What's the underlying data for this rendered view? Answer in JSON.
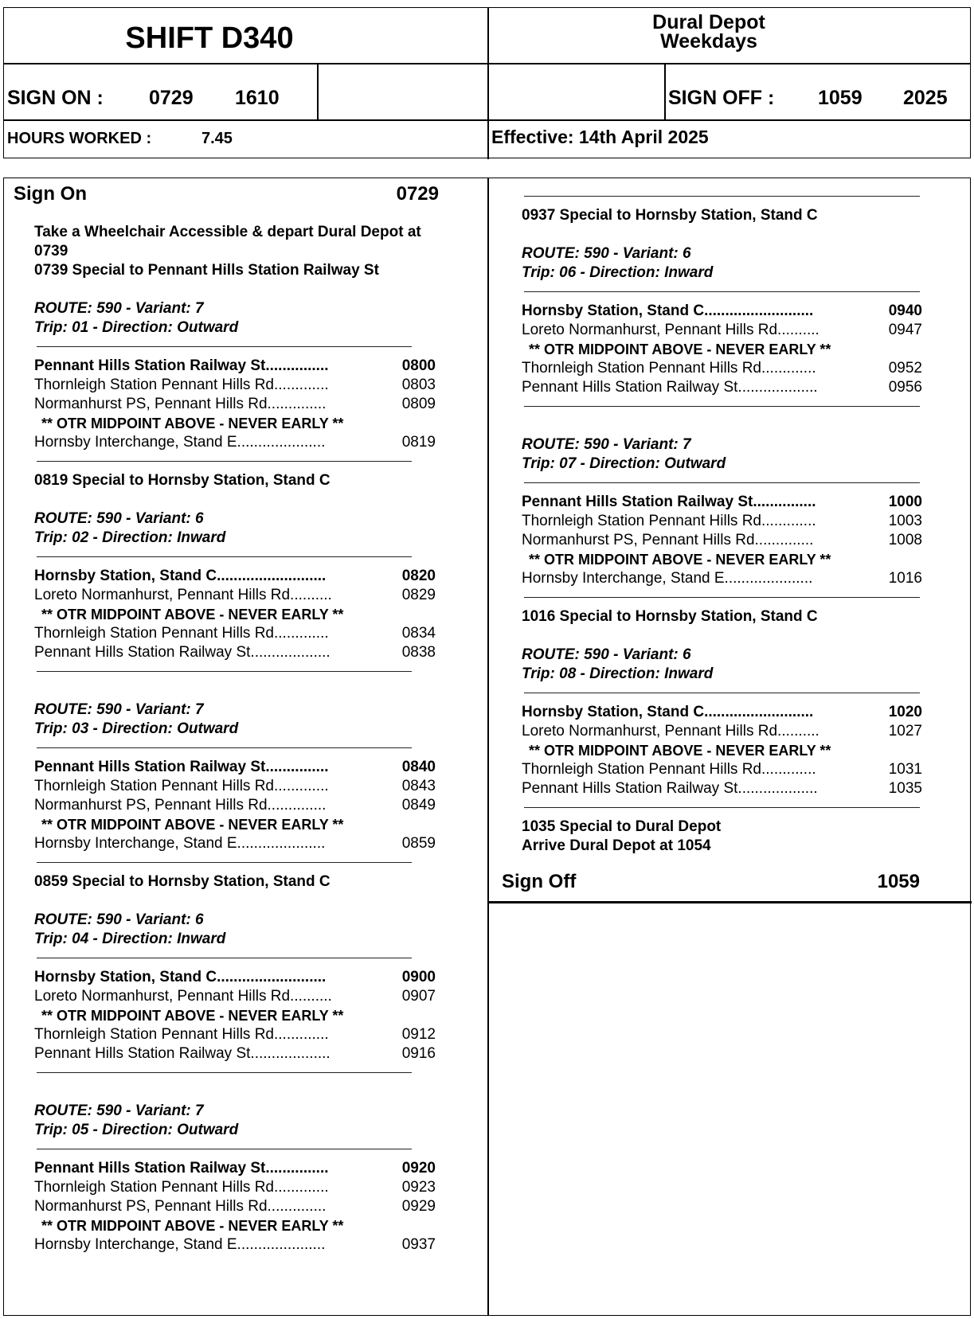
{
  "header": {
    "shift_title": "SHIFT D340",
    "depot": "Dural Depot",
    "day_type": "Weekdays",
    "sign_on_label": "SIGN ON :",
    "sign_on_time_1": "0729",
    "sign_on_time_2": "1610",
    "sign_off_label": "SIGN OFF :",
    "sign_off_time_1": "1059",
    "sign_off_time_2": "2025",
    "hours_worked_label": "HOURS WORKED :",
    "hours_worked_value": "7.45",
    "effective": "Effective: 14th April 2025"
  },
  "columns": {
    "left": [
      {
        "type": "big",
        "label": "Sign On",
        "time": "0729"
      },
      {
        "type": "gap"
      },
      {
        "type": "txt",
        "text": "Take a Wheelchair Accessible & depart Dural Depot at"
      },
      {
        "type": "txt",
        "text": "0739"
      },
      {
        "type": "txt",
        "text": "0739 Special to Pennant Hills Station Railway St"
      },
      {
        "type": "blank"
      },
      {
        "type": "route",
        "text": "ROUTE: 590 - Variant: 7"
      },
      {
        "type": "route",
        "text": "Trip: 01 - Direction: Outward"
      },
      {
        "type": "rule"
      },
      {
        "type": "stop",
        "bold": true,
        "name": "Pennant Hills Station Railway St...............",
        "time": "0800"
      },
      {
        "type": "stop",
        "name": "Thornleigh Station Pennant Hills Rd.............",
        "time": "0803"
      },
      {
        "type": "stop",
        "name": "Normanhurst PS, Pennant Hills Rd..............",
        "time": "0809"
      },
      {
        "type": "otr",
        "text": "** OTR MIDPOINT ABOVE - NEVER EARLY **"
      },
      {
        "type": "stop",
        "name": "Hornsby Interchange, Stand E.....................",
        "time": "0819"
      },
      {
        "type": "rule"
      },
      {
        "type": "txt",
        "text": "0819 Special to Hornsby Station, Stand C"
      },
      {
        "type": "blank"
      },
      {
        "type": "route",
        "text": "ROUTE: 590 - Variant: 6"
      },
      {
        "type": "route",
        "text": "Trip: 02 - Direction: Inward"
      },
      {
        "type": "rule"
      },
      {
        "type": "stop",
        "bold": true,
        "name": "Hornsby Station, Stand C..........................",
        "time": "0820"
      },
      {
        "type": "stop",
        "name": "Loreto Normanhurst, Pennant Hills Rd..........",
        "time": "0829"
      },
      {
        "type": "otr",
        "text": "** OTR MIDPOINT ABOVE - NEVER EARLY **"
      },
      {
        "type": "stop",
        "name": "Thornleigh Station Pennant Hills Rd.............",
        "time": "0834"
      },
      {
        "type": "stop",
        "name": "Pennant Hills Station Railway St...................",
        "time": "0838"
      },
      {
        "type": "rule"
      },
      {
        "type": "blank"
      },
      {
        "type": "route",
        "text": "ROUTE: 590 - Variant: 7"
      },
      {
        "type": "route",
        "text": "Trip: 03 - Direction: Outward"
      },
      {
        "type": "rule"
      },
      {
        "type": "stop",
        "bold": true,
        "name": "Pennant Hills Station Railway St...............",
        "time": "0840"
      },
      {
        "type": "stop",
        "name": "Thornleigh Station Pennant Hills Rd.............",
        "time": "0843"
      },
      {
        "type": "stop",
        "name": "Normanhurst PS, Pennant Hills Rd..............",
        "time": "0849"
      },
      {
        "type": "otr",
        "text": "** OTR MIDPOINT ABOVE - NEVER EARLY **"
      },
      {
        "type": "stop",
        "name": "Hornsby Interchange, Stand E.....................",
        "time": "0859"
      },
      {
        "type": "rule"
      },
      {
        "type": "txt",
        "text": "0859 Special to Hornsby Station, Stand C"
      },
      {
        "type": "blank"
      },
      {
        "type": "route",
        "text": "ROUTE: 590 - Variant: 6"
      },
      {
        "type": "route",
        "text": "Trip: 04 - Direction: Inward"
      },
      {
        "type": "rule"
      },
      {
        "type": "stop",
        "bold": true,
        "name": "Hornsby Station, Stand C..........................",
        "time": "0900"
      },
      {
        "type": "stop",
        "name": "Loreto Normanhurst, Pennant Hills Rd..........",
        "time": "0907"
      },
      {
        "type": "otr",
        "text": "** OTR MIDPOINT ABOVE - NEVER EARLY **"
      },
      {
        "type": "stop",
        "name": "Thornleigh Station Pennant Hills Rd.............",
        "time": "0912"
      },
      {
        "type": "stop",
        "name": "Pennant Hills Station Railway St...................",
        "time": "0916"
      },
      {
        "type": "rule"
      },
      {
        "type": "blank"
      },
      {
        "type": "route",
        "text": "ROUTE: 590 - Variant: 7"
      },
      {
        "type": "route",
        "text": "Trip: 05 - Direction: Outward"
      },
      {
        "type": "rule"
      },
      {
        "type": "stop",
        "bold": true,
        "name": "Pennant Hills Station Railway St...............",
        "time": "0920"
      },
      {
        "type": "stop",
        "name": "Thornleigh Station Pennant Hills Rd.............",
        "time": "0923"
      },
      {
        "type": "stop",
        "name": "Normanhurst PS, Pennant Hills Rd..............",
        "time": "0929"
      },
      {
        "type": "otr",
        "text": "** OTR MIDPOINT ABOVE - NEVER EARLY **"
      },
      {
        "type": "stop",
        "name": "Hornsby Interchange, Stand E.....................",
        "time": "0937"
      }
    ],
    "right": [
      {
        "type": "rule"
      },
      {
        "type": "txt",
        "text": "0937 Special to Hornsby Station, Stand C"
      },
      {
        "type": "blank"
      },
      {
        "type": "route",
        "text": "ROUTE: 590 - Variant: 6"
      },
      {
        "type": "route",
        "text": "Trip: 06 - Direction: Inward"
      },
      {
        "type": "rule"
      },
      {
        "type": "stop",
        "bold": true,
        "name": "Hornsby Station, Stand C..........................",
        "time": "0940"
      },
      {
        "type": "stop",
        "name": "Loreto Normanhurst, Pennant Hills Rd..........",
        "time": "0947"
      },
      {
        "type": "otr",
        "text": "** OTR MIDPOINT ABOVE - NEVER EARLY **"
      },
      {
        "type": "stop",
        "name": "Thornleigh Station Pennant Hills Rd.............",
        "time": "0952"
      },
      {
        "type": "stop",
        "name": "Pennant Hills Station Railway St...................",
        "time": "0956"
      },
      {
        "type": "rule"
      },
      {
        "type": "blank"
      },
      {
        "type": "route",
        "text": "ROUTE: 590 - Variant: 7"
      },
      {
        "type": "route",
        "text": "Trip: 07 - Direction: Outward"
      },
      {
        "type": "rule"
      },
      {
        "type": "stop",
        "bold": true,
        "name": "Pennant Hills Station Railway St...............",
        "time": "1000"
      },
      {
        "type": "stop",
        "name": "Thornleigh Station Pennant Hills Rd.............",
        "time": "1003"
      },
      {
        "type": "stop",
        "name": "Normanhurst PS, Pennant Hills Rd..............",
        "time": "1008"
      },
      {
        "type": "otr",
        "text": "** OTR MIDPOINT ABOVE - NEVER EARLY **"
      },
      {
        "type": "stop",
        "name": "Hornsby Interchange, Stand E.....................",
        "time": "1016"
      },
      {
        "type": "rule"
      },
      {
        "type": "txt",
        "text": "1016 Special to Hornsby Station, Stand C"
      },
      {
        "type": "blank"
      },
      {
        "type": "route",
        "text": "ROUTE: 590 - Variant: 6"
      },
      {
        "type": "route",
        "text": "Trip: 08 - Direction: Inward"
      },
      {
        "type": "rule"
      },
      {
        "type": "stop",
        "bold": true,
        "name": "Hornsby Station, Stand C..........................",
        "time": "1020"
      },
      {
        "type": "stop",
        "name": "Loreto Normanhurst, Pennant Hills Rd..........",
        "time": "1027"
      },
      {
        "type": "otr",
        "text": "** OTR MIDPOINT ABOVE - NEVER EARLY **"
      },
      {
        "type": "stop",
        "name": "Thornleigh Station Pennant Hills Rd.............",
        "time": "1031"
      },
      {
        "type": "stop",
        "name": "Pennant Hills Station Railway St...................",
        "time": "1035"
      },
      {
        "type": "rule"
      },
      {
        "type": "txt",
        "text": "1035 Special to Dural Depot"
      },
      {
        "type": "txt",
        "text": "Arrive Dural Depot at 1054"
      }
    ],
    "sign_off": {
      "label": "Sign Off",
      "time": "1059"
    }
  }
}
